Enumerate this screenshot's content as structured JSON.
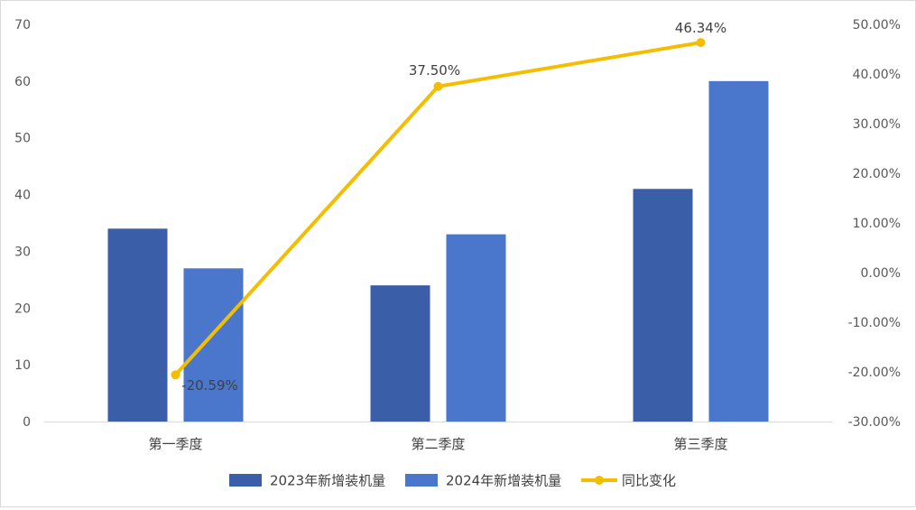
{
  "chart_data": {
    "type": "bar",
    "categories": [
      "第一季度",
      "第二季度",
      "第三季度"
    ],
    "series": [
      {
        "name": "2023年新增装机量",
        "kind": "bar",
        "axis": "left",
        "color": "#3a5ea8",
        "values": [
          34,
          24,
          41
        ]
      },
      {
        "name": "2024年新增装机量",
        "kind": "bar",
        "axis": "left",
        "color": "#4a76cc",
        "values": [
          27,
          33,
          60
        ]
      },
      {
        "name": "同比变化",
        "kind": "line",
        "axis": "right",
        "color": "#f5bd00",
        "values": [
          -20.59,
          37.5,
          46.34
        ],
        "labels": [
          "-20.59%",
          "37.50%",
          "46.34%"
        ]
      }
    ],
    "ylim": [
      0,
      70
    ],
    "yticks": [
      "0",
      "10",
      "20",
      "30",
      "40",
      "50",
      "60",
      "70"
    ],
    "y2lim": [
      -30,
      50
    ],
    "y2ticks": [
      "-30.00%",
      "-20.00%",
      "-10.00%",
      "0.00%",
      "10.00%",
      "20.00%",
      "30.00%",
      "40.00%",
      "50.00%"
    ],
    "grid": false,
    "legend": "bottom"
  }
}
